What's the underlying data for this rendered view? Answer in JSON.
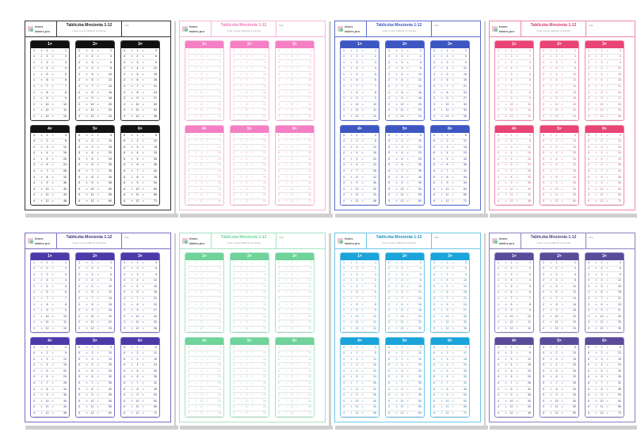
{
  "worksheet": {
    "title": "Tabliczka Mnożenia 1-12",
    "subtitle": "Czas i oceny tabliczki mnożenia",
    "name_label": "Imię",
    "logo_text": [
      "times",
      "tables.pro"
    ],
    "times_sign": "×",
    "equals_sign": "="
  },
  "themes": [
    {
      "header": "#111111",
      "text": "#222222",
      "border": "#333333",
      "title": "#222222"
    },
    {
      "header": "#f57fc4",
      "text": "#f4a3cf",
      "border": "#f7b6d8",
      "title": "#f27ab9"
    },
    {
      "header": "#3d56c2",
      "text": "#34449a",
      "border": "#5b6fd0",
      "title": "#3d56c2"
    },
    {
      "header": "#e84474",
      "text": "#c8577a",
      "border": "#ee88a5",
      "title": "#d63c6b"
    },
    {
      "header": "#4b3aa8",
      "text": "#3b3380",
      "border": "#7a6cc4",
      "title": "#3b3380"
    },
    {
      "header": "#6fd39a",
      "text": "#9fdcb8",
      "border": "#a8e2c2",
      "title": "#6fd39a"
    },
    {
      "header": "#1aa4d9",
      "text": "#2a7fa8",
      "border": "#6fc5e6",
      "title": "#1a8fc0"
    },
    {
      "header": "#5a4b9a",
      "text": "#4a3f7e",
      "border": "#8a7fbf",
      "title": "#4a3f7e"
    }
  ],
  "tables": [
    {
      "header": "1×",
      "rows": [
        [
          1,
          1,
          1
        ],
        [
          1,
          2,
          2
        ],
        [
          1,
          3,
          3
        ],
        [
          1,
          4,
          4
        ],
        [
          1,
          5,
          5
        ],
        [
          1,
          6,
          6
        ],
        [
          1,
          7,
          7
        ],
        [
          1,
          8,
          8
        ],
        [
          1,
          9,
          9
        ],
        [
          1,
          10,
          10
        ],
        [
          1,
          11,
          11
        ],
        [
          1,
          12,
          12
        ]
      ]
    },
    {
      "header": "2×",
      "rows": [
        [
          2,
          1,
          2
        ],
        [
          2,
          2,
          4
        ],
        [
          2,
          3,
          6
        ],
        [
          2,
          4,
          8
        ],
        [
          2,
          5,
          10
        ],
        [
          2,
          6,
          12
        ],
        [
          2,
          7,
          14
        ],
        [
          2,
          8,
          16
        ],
        [
          2,
          9,
          18
        ],
        [
          2,
          10,
          20
        ],
        [
          2,
          11,
          22
        ],
        [
          2,
          12,
          24
        ]
      ]
    },
    {
      "header": "3×",
      "rows": [
        [
          3,
          1,
          3
        ],
        [
          3,
          2,
          6
        ],
        [
          3,
          3,
          9
        ],
        [
          3,
          4,
          12
        ],
        [
          3,
          5,
          15
        ],
        [
          3,
          6,
          18
        ],
        [
          3,
          7,
          21
        ],
        [
          3,
          8,
          24
        ],
        [
          3,
          9,
          27
        ],
        [
          3,
          10,
          30
        ],
        [
          3,
          11,
          33
        ],
        [
          3,
          12,
          36
        ]
      ]
    },
    {
      "header": "4×",
      "rows": [
        [
          4,
          1,
          4
        ],
        [
          4,
          2,
          8
        ],
        [
          4,
          3,
          12
        ],
        [
          4,
          4,
          16
        ],
        [
          4,
          5,
          20
        ],
        [
          4,
          6,
          24
        ],
        [
          4,
          7,
          28
        ],
        [
          4,
          8,
          32
        ],
        [
          4,
          9,
          36
        ],
        [
          4,
          10,
          40
        ],
        [
          4,
          11,
          44
        ],
        [
          4,
          12,
          48
        ]
      ]
    },
    {
      "header": "5×",
      "rows": [
        [
          5,
          1,
          5
        ],
        [
          5,
          2,
          10
        ],
        [
          5,
          3,
          15
        ],
        [
          5,
          4,
          20
        ],
        [
          5,
          5,
          25
        ],
        [
          5,
          6,
          30
        ],
        [
          5,
          7,
          35
        ],
        [
          5,
          8,
          40
        ],
        [
          5,
          9,
          45
        ],
        [
          5,
          10,
          50
        ],
        [
          5,
          11,
          55
        ],
        [
          5,
          12,
          60
        ]
      ]
    },
    {
      "header": "6×",
      "rows": [
        [
          6,
          1,
          6
        ],
        [
          6,
          2,
          12
        ],
        [
          6,
          3,
          18
        ],
        [
          6,
          4,
          24
        ],
        [
          6,
          5,
          30
        ],
        [
          6,
          6,
          36
        ],
        [
          6,
          7,
          42
        ],
        [
          6,
          8,
          48
        ],
        [
          6,
          9,
          54
        ],
        [
          6,
          10,
          60
        ],
        [
          6,
          11,
          66
        ],
        [
          6,
          12,
          72
        ]
      ]
    }
  ]
}
